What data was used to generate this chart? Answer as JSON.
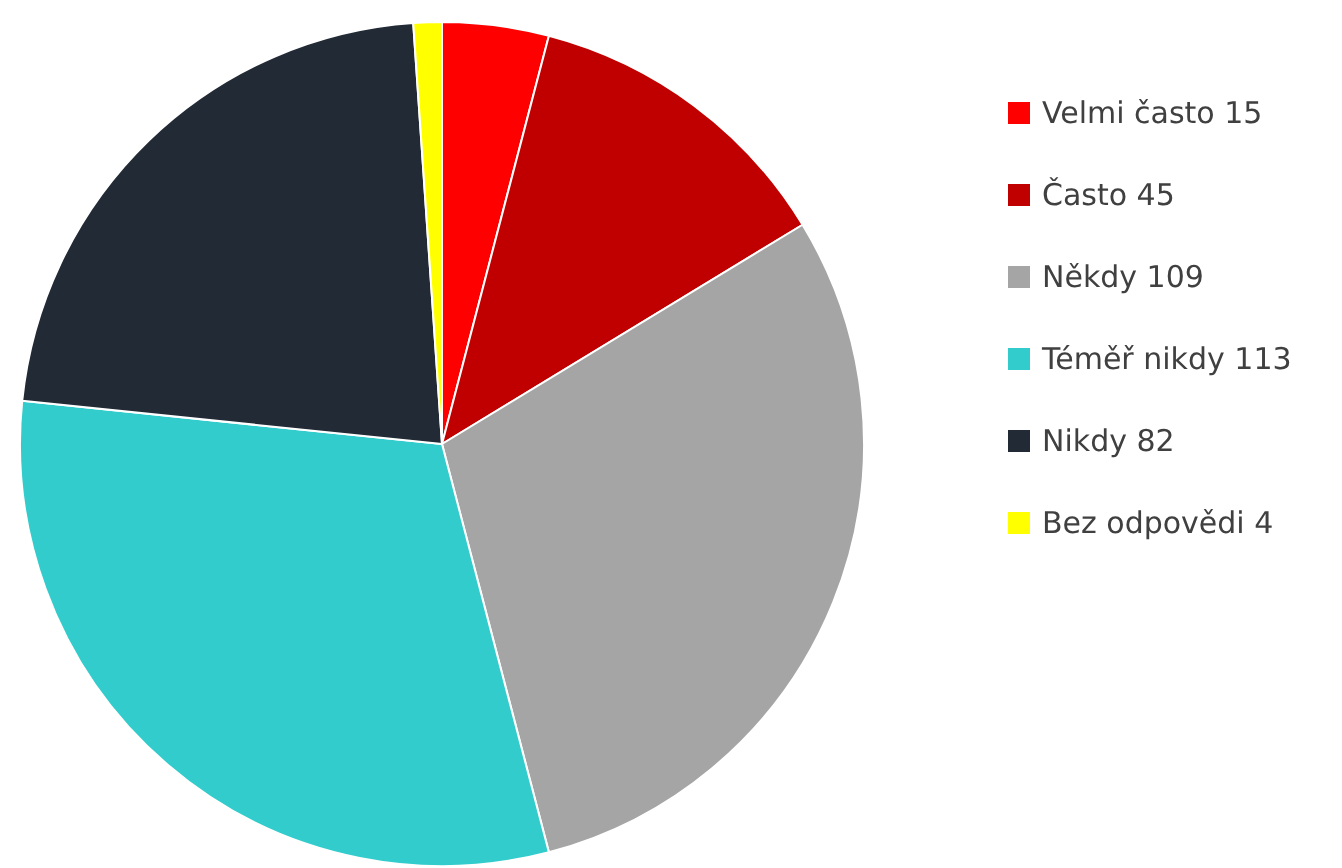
{
  "chart_data": {
    "type": "pie",
    "categories": [
      "Velmi často 15",
      "Často 45",
      "Někdy 109",
      "Téměř nikdy 113",
      "Nikdy 82",
      "Bez odpovědi 4"
    ],
    "values": [
      15,
      45,
      109,
      113,
      82,
      4
    ],
    "colors": [
      "#ff0000",
      "#c00000",
      "#a5a5a5",
      "#33cccc",
      "#222a35",
      "#ffff00"
    ],
    "legend": "right"
  }
}
